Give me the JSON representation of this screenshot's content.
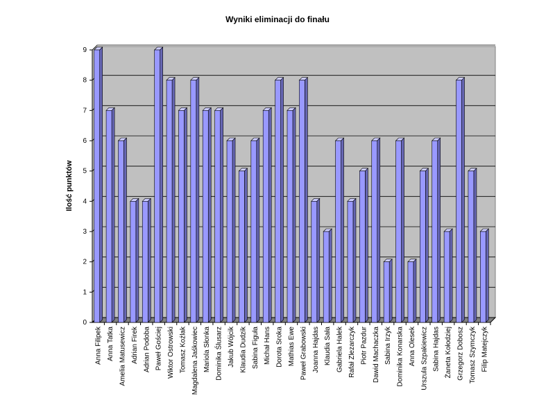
{
  "chart_data": {
    "type": "bar",
    "title": "Wyniki eliminacji do finału",
    "y_label": "Ilość punktów",
    "categories": [
      "Anna Filipek",
      "Anna Tatka",
      "Amelia Matusewicz",
      "Adrian Firek",
      "Adrian Podoba",
      "Paweł Gościej",
      "Wiktor Ostrowski",
      "Tomasz Koźlak",
      "Magdalena Jaśkowiec",
      "Mariola Słonka",
      "Dominika Ślusarz",
      "Jakub Wójcik",
      "Klaudia Dudzik",
      "Sabina Figuła",
      "Michał Hans",
      "Dorota Sroka",
      "Mathias Ewe",
      "Paweł Grabowski",
      "Joanna Hajdas",
      "Klaudia Sała",
      "Gabriela Halek",
      "Rafał Zlezarczyk",
      "Piotr Pazdur",
      "Dawid Machaczka",
      "Sabina Irzyk",
      "Dominika Konarska",
      "Anna Olesek",
      "Urszula Szpakiewicz",
      "Sabina Hajdas",
      "Żaneta Kołodziej",
      "Grzegorz Dobosz",
      "Tomasz Szymczyk",
      "Filip Matejczyk"
    ],
    "values": [
      9,
      7,
      6,
      4,
      4,
      9,
      8,
      7,
      8,
      7,
      7,
      6,
      5,
      6,
      7,
      8,
      7,
      8,
      4,
      3,
      6,
      4,
      5,
      6,
      2,
      6,
      2,
      5,
      6,
      3,
      8,
      5,
      3
    ],
    "color": "#9999ff",
    "ylim": [
      0,
      9
    ],
    "yticks": [
      0,
      1,
      2,
      3,
      4,
      5,
      6,
      7,
      8,
      9
    ],
    "grid": true
  }
}
